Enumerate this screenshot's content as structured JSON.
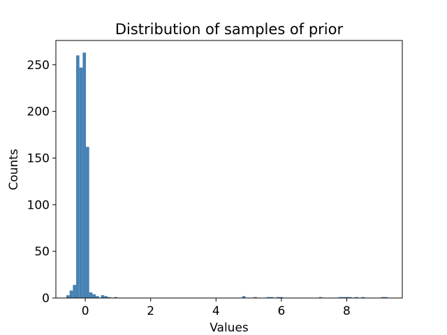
{
  "chart_data": {
    "type": "bar",
    "subtype": "histogram",
    "title": "Distribution of samples of prior",
    "xlabel": "Values",
    "ylabel": "Counts",
    "xlim": [
      -0.9,
      9.7
    ],
    "ylim": [
      0,
      276
    ],
    "xticks": [
      0,
      2,
      4,
      6,
      8
    ],
    "xtick_labels": [
      "0",
      "2",
      "4",
      "6",
      "8"
    ],
    "yticks": [
      0,
      50,
      100,
      150,
      200,
      250
    ],
    "ytick_labels": [
      "0",
      "50",
      "100",
      "150",
      "200",
      "250"
    ],
    "bar_color": "#4682b4",
    "grid": false,
    "legend": "none",
    "bins": [
      {
        "x0": -0.58,
        "x1": -0.48,
        "count": 3
      },
      {
        "x0": -0.48,
        "x1": -0.38,
        "count": 8
      },
      {
        "x0": -0.38,
        "x1": -0.28,
        "count": 14
      },
      {
        "x0": -0.28,
        "x1": -0.18,
        "count": 260
      },
      {
        "x0": -0.18,
        "x1": -0.08,
        "count": 247
      },
      {
        "x0": -0.08,
        "x1": 0.02,
        "count": 263
      },
      {
        "x0": 0.02,
        "x1": 0.12,
        "count": 162
      },
      {
        "x0": 0.12,
        "x1": 0.22,
        "count": 6
      },
      {
        "x0": 0.22,
        "x1": 0.32,
        "count": 4
      },
      {
        "x0": 0.32,
        "x1": 0.42,
        "count": 2
      },
      {
        "x0": 0.48,
        "x1": 0.58,
        "count": 3
      },
      {
        "x0": 0.58,
        "x1": 0.68,
        "count": 2
      },
      {
        "x0": 0.68,
        "x1": 0.78,
        "count": 1
      },
      {
        "x0": 0.88,
        "x1": 0.98,
        "count": 1
      },
      {
        "x0": 4.8,
        "x1": 4.9,
        "count": 2
      },
      {
        "x0": 5.15,
        "x1": 5.25,
        "count": 1
      },
      {
        "x0": 5.55,
        "x1": 5.65,
        "count": 1
      },
      {
        "x0": 5.65,
        "x1": 5.75,
        "count": 1
      },
      {
        "x0": 5.85,
        "x1": 5.95,
        "count": 1
      },
      {
        "x0": 5.95,
        "x1": 6.05,
        "count": 1
      },
      {
        "x0": 7.15,
        "x1": 7.25,
        "count": 1
      },
      {
        "x0": 7.75,
        "x1": 7.85,
        "count": 1
      },
      {
        "x0": 7.85,
        "x1": 7.95,
        "count": 1
      },
      {
        "x0": 7.95,
        "x1": 8.05,
        "count": 1
      },
      {
        "x0": 8.05,
        "x1": 8.15,
        "count": 1
      },
      {
        "x0": 8.25,
        "x1": 8.35,
        "count": 1
      },
      {
        "x0": 8.45,
        "x1": 8.55,
        "count": 1
      },
      {
        "x0": 9.05,
        "x1": 9.15,
        "count": 1
      },
      {
        "x0": 9.15,
        "x1": 9.25,
        "count": 1
      }
    ]
  }
}
